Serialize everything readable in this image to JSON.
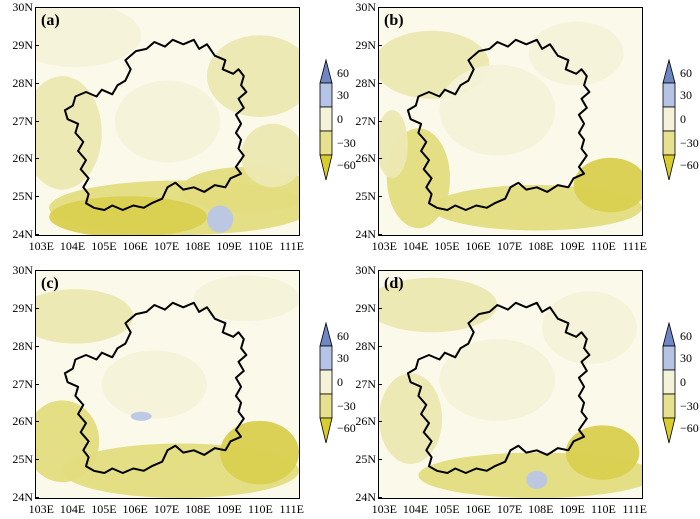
{
  "figure": {
    "panels": [
      {
        "label": "(a)"
      },
      {
        "label": "(b)"
      },
      {
        "label": "(c)"
      },
      {
        "label": "(d)"
      }
    ],
    "lat_labels": [
      "24N",
      "25N",
      "26N",
      "27N",
      "28N",
      "29N",
      "30N"
    ],
    "lon_labels": [
      "103E",
      "104E",
      "105E",
      "106E",
      "107E",
      "108E",
      "109E",
      "110E",
      "111E"
    ],
    "colorbar": {
      "labels": [
        "60",
        "30",
        "0",
        "−30",
        "−60"
      ],
      "colors": [
        "#6f86c4",
        "#b5c3e4",
        "#f4f2d8",
        "#e7e18f",
        "#d8cc2f"
      ]
    },
    "field_colors": {
      "base": "#fbf9ea",
      "light": "#f4f2d8",
      "mid": "#ece8b2",
      "strong": "#e3dc80",
      "deep": "#d9cf4f",
      "blue": "#b9c6e6"
    }
  }
}
